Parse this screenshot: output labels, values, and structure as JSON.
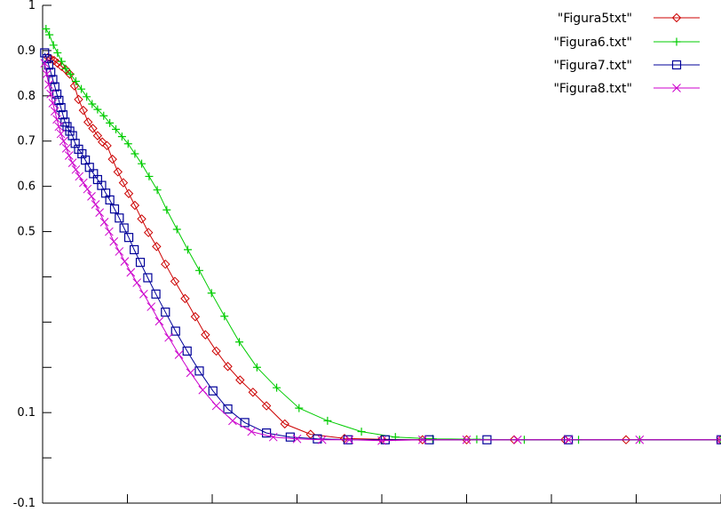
{
  "chart_data": {
    "type": "line",
    "title": "",
    "xlabel": "",
    "ylabel": "",
    "ylim": [
      -0.1,
      1
    ],
    "xlim": [
      0,
      1
    ],
    "grid": false,
    "legend_position": "top-right",
    "y_ticks": [
      {
        "value": 1,
        "label": "1"
      },
      {
        "value": 0.9,
        "label": "0.9"
      },
      {
        "value": 0.8,
        "label": "0.8"
      },
      {
        "value": 0.7,
        "label": "0.7"
      },
      {
        "value": 0.6,
        "label": "0.6"
      },
      {
        "value": 0.5,
        "label": "0.5"
      },
      {
        "value": 0.4,
        "label": ""
      },
      {
        "value": 0.3,
        "label": ""
      },
      {
        "value": 0.2,
        "label": ""
      },
      {
        "value": 0.1,
        "label": "0.1"
      },
      {
        "value": 0.0,
        "label": ""
      },
      {
        "value": -0.1,
        "label": "-0.1"
      }
    ],
    "x_ticks": [
      0,
      0.125,
      0.25,
      0.375,
      0.5,
      0.625,
      0.75,
      0.875,
      1.0
    ],
    "series": [
      {
        "name": "\"Figura5txt\"",
        "color": "#cc0000",
        "marker": "diamond",
        "points": [
          [
            0.008,
            0.885
          ],
          [
            0.012,
            0.882
          ],
          [
            0.017,
            0.878
          ],
          [
            0.022,
            0.872
          ],
          [
            0.028,
            0.865
          ],
          [
            0.034,
            0.858
          ],
          [
            0.04,
            0.848
          ],
          [
            0.047,
            0.822
          ],
          [
            0.053,
            0.792
          ],
          [
            0.06,
            0.768
          ],
          [
            0.067,
            0.742
          ],
          [
            0.074,
            0.728
          ],
          [
            0.081,
            0.712
          ],
          [
            0.088,
            0.698
          ],
          [
            0.095,
            0.69
          ],
          [
            0.103,
            0.66
          ],
          [
            0.111,
            0.632
          ],
          [
            0.119,
            0.608
          ],
          [
            0.127,
            0.584
          ],
          [
            0.136,
            0.558
          ],
          [
            0.146,
            0.528
          ],
          [
            0.156,
            0.498
          ],
          [
            0.168,
            0.467
          ],
          [
            0.181,
            0.428
          ],
          [
            0.195,
            0.39
          ],
          [
            0.21,
            0.352
          ],
          [
            0.225,
            0.312
          ],
          [
            0.24,
            0.272
          ],
          [
            0.256,
            0.236
          ],
          [
            0.273,
            0.202
          ],
          [
            0.291,
            0.172
          ],
          [
            0.31,
            0.145
          ],
          [
            0.33,
            0.115
          ],
          [
            0.357,
            0.075
          ],
          [
            0.395,
            0.052
          ],
          [
            0.445,
            0.043
          ],
          [
            0.5,
            0.041
          ],
          [
            0.56,
            0.04
          ],
          [
            0.625,
            0.04
          ],
          [
            0.695,
            0.04
          ],
          [
            0.77,
            0.04
          ],
          [
            0.86,
            0.04
          ],
          [
            1.0,
            0.04
          ]
        ]
      },
      {
        "name": "\"Figura6.txt\"",
        "color": "#00cc00",
        "marker": "plus",
        "points": [
          [
            0.005,
            0.948
          ],
          [
            0.01,
            0.935
          ],
          [
            0.016,
            0.912
          ],
          [
            0.022,
            0.895
          ],
          [
            0.028,
            0.876
          ],
          [
            0.034,
            0.86
          ],
          [
            0.041,
            0.848
          ],
          [
            0.049,
            0.832
          ],
          [
            0.057,
            0.815
          ],
          [
            0.065,
            0.798
          ],
          [
            0.073,
            0.782
          ],
          [
            0.081,
            0.77
          ],
          [
            0.09,
            0.756
          ],
          [
            0.099,
            0.74
          ],
          [
            0.108,
            0.726
          ],
          [
            0.117,
            0.71
          ],
          [
            0.126,
            0.694
          ],
          [
            0.136,
            0.672
          ],
          [
            0.146,
            0.65
          ],
          [
            0.157,
            0.622
          ],
          [
            0.169,
            0.592
          ],
          [
            0.183,
            0.548
          ],
          [
            0.198,
            0.505
          ],
          [
            0.214,
            0.46
          ],
          [
            0.231,
            0.414
          ],
          [
            0.249,
            0.364
          ],
          [
            0.268,
            0.313
          ],
          [
            0.29,
            0.256
          ],
          [
            0.316,
            0.2
          ],
          [
            0.345,
            0.155
          ],
          [
            0.378,
            0.11
          ],
          [
            0.42,
            0.082
          ],
          [
            0.47,
            0.058
          ],
          [
            0.52,
            0.046
          ],
          [
            0.575,
            0.042
          ],
          [
            0.64,
            0.041
          ],
          [
            0.71,
            0.04
          ],
          [
            0.79,
            0.04
          ],
          [
            0.88,
            0.04
          ],
          [
            1.0,
            0.04
          ]
        ]
      },
      {
        "name": "\"Figura7.txt\"",
        "color": "#000099",
        "marker": "square",
        "points": [
          [
            0.003,
            0.895
          ],
          [
            0.006,
            0.882
          ],
          [
            0.009,
            0.868
          ],
          [
            0.012,
            0.852
          ],
          [
            0.015,
            0.836
          ],
          [
            0.018,
            0.82
          ],
          [
            0.021,
            0.804
          ],
          [
            0.024,
            0.79
          ],
          [
            0.027,
            0.774
          ],
          [
            0.03,
            0.758
          ],
          [
            0.033,
            0.742
          ],
          [
            0.036,
            0.732
          ],
          [
            0.04,
            0.722
          ],
          [
            0.044,
            0.712
          ],
          [
            0.048,
            0.695
          ],
          [
            0.053,
            0.682
          ],
          [
            0.058,
            0.672
          ],
          [
            0.063,
            0.658
          ],
          [
            0.069,
            0.642
          ],
          [
            0.075,
            0.628
          ],
          [
            0.081,
            0.615
          ],
          [
            0.087,
            0.602
          ],
          [
            0.093,
            0.585
          ],
          [
            0.099,
            0.57
          ],
          [
            0.106,
            0.55
          ],
          [
            0.113,
            0.53
          ],
          [
            0.12,
            0.508
          ],
          [
            0.127,
            0.487
          ],
          [
            0.135,
            0.46
          ],
          [
            0.144,
            0.432
          ],
          [
            0.155,
            0.398
          ],
          [
            0.167,
            0.362
          ],
          [
            0.181,
            0.322
          ],
          [
            0.196,
            0.28
          ],
          [
            0.213,
            0.236
          ],
          [
            0.231,
            0.192
          ],
          [
            0.251,
            0.148
          ],
          [
            0.273,
            0.108
          ],
          [
            0.298,
            0.078
          ],
          [
            0.33,
            0.055
          ],
          [
            0.365,
            0.046
          ],
          [
            0.405,
            0.042
          ],
          [
            0.45,
            0.04
          ],
          [
            0.505,
            0.04
          ],
          [
            0.57,
            0.04
          ],
          [
            0.655,
            0.04
          ],
          [
            0.775,
            0.04
          ],
          [
            1.0,
            0.04
          ]
        ]
      },
      {
        "name": "\"Figura8.txt\"",
        "color": "#cc00cc",
        "marker": "cross",
        "points": [
          [
            0.003,
            0.872
          ],
          [
            0.006,
            0.848
          ],
          [
            0.009,
            0.825
          ],
          [
            0.012,
            0.804
          ],
          [
            0.015,
            0.784
          ],
          [
            0.018,
            0.766
          ],
          [
            0.021,
            0.748
          ],
          [
            0.024,
            0.732
          ],
          [
            0.027,
            0.716
          ],
          [
            0.031,
            0.7
          ],
          [
            0.035,
            0.684
          ],
          [
            0.039,
            0.668
          ],
          [
            0.044,
            0.652
          ],
          [
            0.049,
            0.637
          ],
          [
            0.054,
            0.622
          ],
          [
            0.06,
            0.608
          ],
          [
            0.066,
            0.594
          ],
          [
            0.072,
            0.578
          ],
          [
            0.078,
            0.56
          ],
          [
            0.084,
            0.542
          ],
          [
            0.091,
            0.521
          ],
          [
            0.098,
            0.5
          ],
          [
            0.105,
            0.478
          ],
          [
            0.113,
            0.456
          ],
          [
            0.121,
            0.434
          ],
          [
            0.13,
            0.41
          ],
          [
            0.139,
            0.387
          ],
          [
            0.149,
            0.362
          ],
          [
            0.16,
            0.334
          ],
          [
            0.172,
            0.302
          ],
          [
            0.186,
            0.266
          ],
          [
            0.201,
            0.228
          ],
          [
            0.218,
            0.188
          ],
          [
            0.236,
            0.15
          ],
          [
            0.256,
            0.115
          ],
          [
            0.28,
            0.082
          ],
          [
            0.308,
            0.058
          ],
          [
            0.34,
            0.046
          ],
          [
            0.375,
            0.042
          ],
          [
            0.412,
            0.04
          ],
          [
            0.452,
            0.04
          ],
          [
            0.5,
            0.038
          ],
          [
            0.56,
            0.04
          ],
          [
            0.625,
            0.04
          ],
          [
            0.7,
            0.04
          ],
          [
            0.775,
            0.04
          ],
          [
            0.88,
            0.04
          ],
          [
            1.0,
            0.04
          ]
        ]
      }
    ]
  }
}
